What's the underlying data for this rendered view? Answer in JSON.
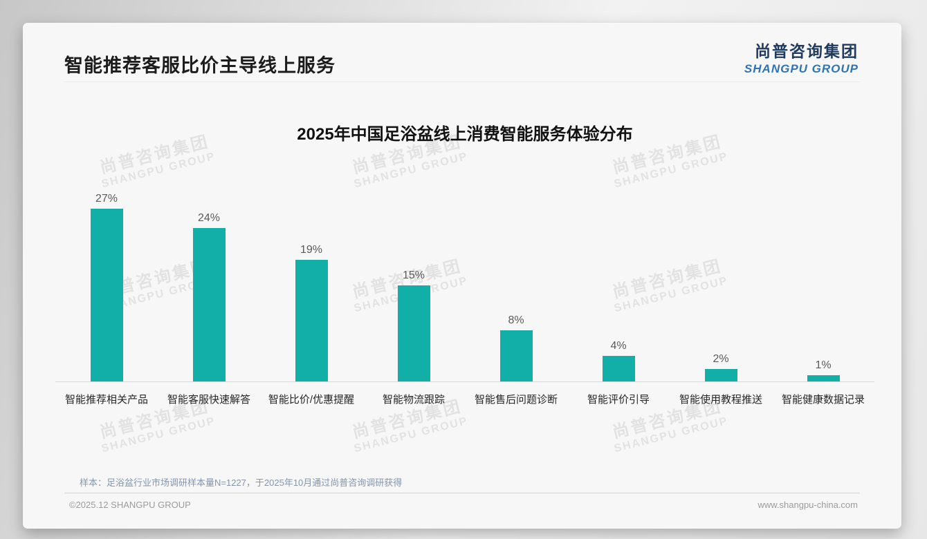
{
  "header": {
    "title": "智能推荐客服比价主导线上服务"
  },
  "brand": {
    "name_cn": "尚普咨询集团",
    "name_en": "SHANGPU GROUP",
    "color_cn": "#1F3A5F",
    "color_en": "#2F74B5"
  },
  "watermark": {
    "line1": "尚普咨询集团",
    "line2": "SHANGPU GROUP"
  },
  "chart_data": {
    "type": "bar",
    "title": "2025年中国足浴盆线上消费智能服务体验分布",
    "categories": [
      "智能推荐相关产品",
      "智能客服快速解答",
      "智能比价/优惠提醒",
      "智能物流跟踪",
      "智能售后问题诊断",
      "智能评价引导",
      "智能使用教程推送",
      "智能健康数据记录"
    ],
    "values": [
      27,
      24,
      19,
      15,
      8,
      4,
      2,
      1
    ],
    "value_suffix": "%",
    "xlabel": "",
    "ylabel": "",
    "ylim": [
      0,
      30
    ],
    "grid": false,
    "legend": false,
    "bar_color": "#12AFA8",
    "value_label_color": "#595959"
  },
  "footer": {
    "note": "样本：足浴盆行业市场调研样本量N=1227，于2025年10月通过尚普咨询调研获得",
    "copyright": "©2025.12 SHANGPU GROUP",
    "website": "www.shangpu-china.com"
  }
}
